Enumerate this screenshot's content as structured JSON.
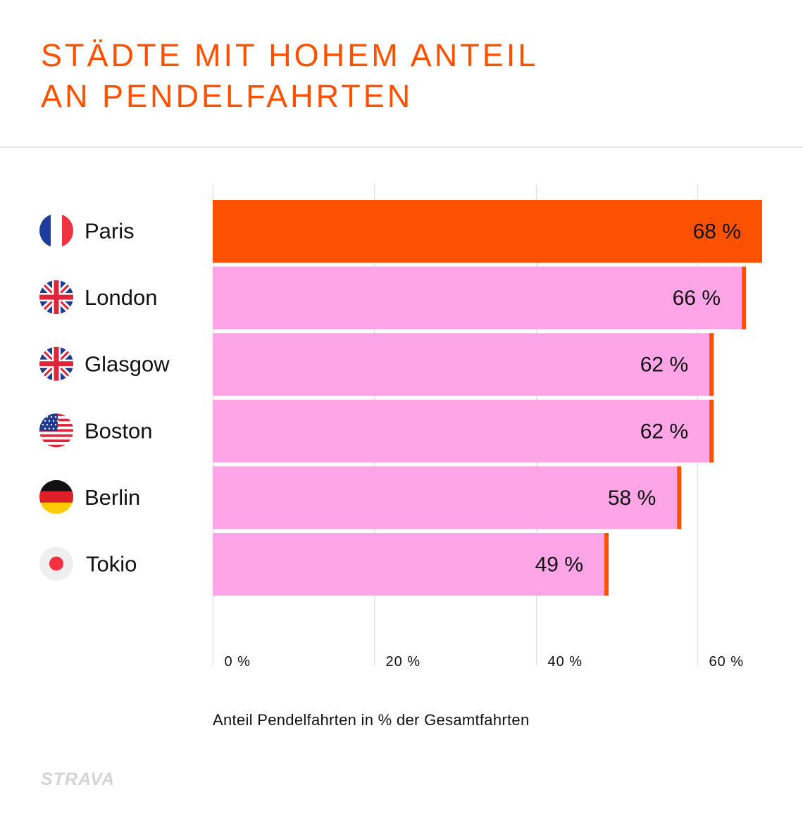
{
  "header": {
    "title_line1": "STÄDTE MIT HOHEM ANTEIL",
    "title_line2": "AN PENDELFAHRTEN"
  },
  "colors": {
    "accent": "#fc5200",
    "bar_highlight": "#fc5200",
    "bar_default": "#fea5e8",
    "bar_marker": "#fc5200",
    "grid": "#e2e2e2",
    "text": "#111111"
  },
  "chart_data": {
    "type": "bar",
    "orientation": "horizontal",
    "title": "STÄDTE MIT HOHEM ANTEIL AN PENDELFAHRTEN",
    "xlabel": "Anteil Pendelfahrten in % der Gesamtfahrten",
    "ylabel": "",
    "xlim": [
      0,
      70
    ],
    "grid": true,
    "xticks": [
      0,
      20,
      40,
      60
    ],
    "xtick_labels": [
      "0 %",
      "20 %",
      "40 %",
      "60 %"
    ],
    "categories": [
      "Paris",
      "London",
      "Glasgow",
      "Boston",
      "Berlin",
      "Tokio"
    ],
    "values": [
      68,
      66,
      62,
      62,
      58,
      49
    ],
    "value_labels": [
      "68 %",
      "66 %",
      "62 %",
      "62 %",
      "58 %",
      "49 %"
    ],
    "flags": [
      "france-flag-icon",
      "uk-flag-icon",
      "uk-flag-icon",
      "us-flag-icon",
      "germany-flag-icon",
      "japan-flag-icon"
    ],
    "highlight": "Paris"
  },
  "footer": {
    "logo_text": "STRAVA"
  }
}
